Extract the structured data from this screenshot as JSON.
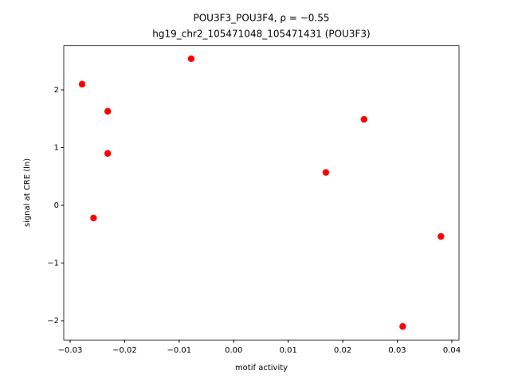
{
  "chart_data": {
    "type": "scatter",
    "title": "POU3F3_POU3F4, ρ = −0.55",
    "subtitle": "hg19_chr2_105471048_105471431 (POU3F3)",
    "x_label": "motif activity",
    "y_label": "signal at CRE (ln)",
    "color": "#ff0000",
    "x": [
      -0.0278,
      -0.0078,
      -0.0231,
      -0.0231,
      -0.0257,
      0.0169,
      0.0239,
      0.038,
      0.031
    ],
    "values": [
      2.1,
      2.54,
      1.63,
      0.9,
      -0.22,
      0.57,
      1.49,
      -0.54,
      -2.1
    ],
    "xlim": [
      -0.03117,
      0.04132
    ],
    "ylim": [
      -2.334,
      2.764
    ],
    "xticks": [
      {
        "value": -0.03,
        "label": "−0.03"
      },
      {
        "value": -0.02,
        "label": "−0.02"
      },
      {
        "value": -0.01,
        "label": "−0.01"
      },
      {
        "value": 0,
        "label": "0.00"
      },
      0.01,
      0.02,
      0.03,
      0.04
    ],
    "yticks": [
      {
        "value": -2,
        "label": "−2"
      },
      {
        "value": -1,
        "label": "−1"
      },
      0,
      1,
      2
    ]
  }
}
